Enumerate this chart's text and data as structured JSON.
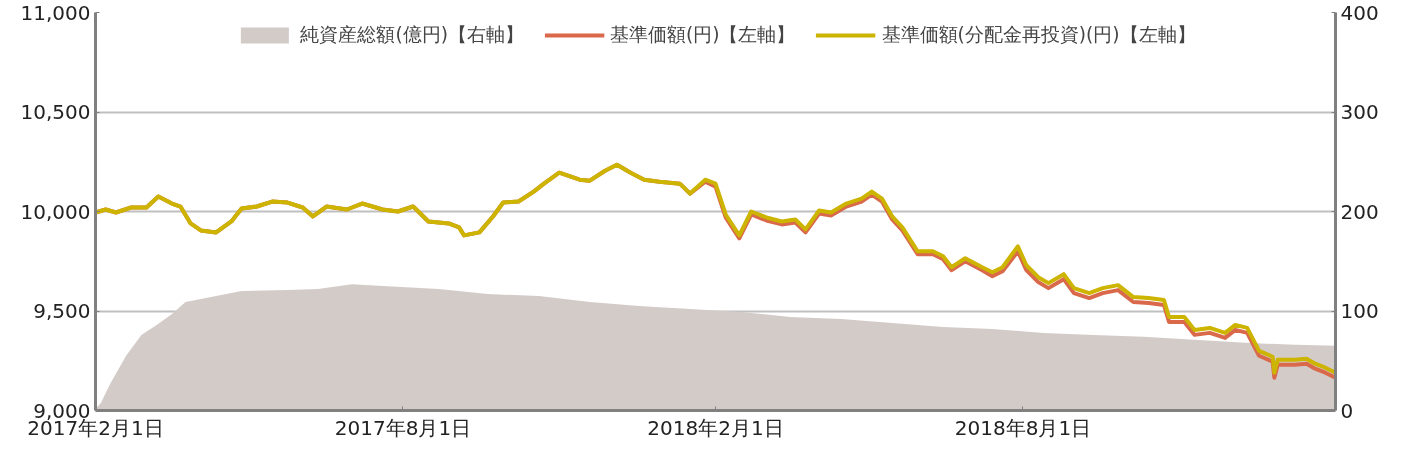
{
  "chart_data": {
    "type": "line",
    "xlim": [
      "2017-02-01",
      "2019-02-01"
    ],
    "xticks": [
      {
        "value": "2017-02-01",
        "label": "2017年2月1日"
      },
      {
        "value": "2017-08-01",
        "label": "2017年8月1日"
      },
      {
        "value": "2018-02-01",
        "label": "2018年2月1日"
      },
      {
        "value": "2018-08-01",
        "label": "2018年8月1日"
      }
    ],
    "ylim": [
      9000,
      11000
    ],
    "yticks": [
      {
        "value": 9000,
        "label": "9,000"
      },
      {
        "value": 9500,
        "label": "9,500"
      },
      {
        "value": 10000,
        "label": "10,000"
      },
      {
        "value": 10500,
        "label": "10,500"
      },
      {
        "value": 11000,
        "label": "11,000"
      }
    ],
    "y2lim": [
      0,
      400
    ],
    "y2ticks": [
      0,
      100,
      200,
      300,
      400
    ],
    "grid": "y",
    "legend": "top",
    "series": [
      {
        "name": "純資産総額(億円)【右軸】",
        "type": "area",
        "axis": "y2",
        "color": "#d3cbc8",
        "x": [
          "2017-02-01",
          "2017-02-04",
          "2017-02-10",
          "2017-02-19",
          "2017-02-28",
          "2017-03-09",
          "2017-03-18",
          "2017-03-26",
          "2017-04-07",
          "2017-04-28",
          "2017-05-25",
          "2017-06-12",
          "2017-07-02",
          "2017-07-23",
          "2017-08-22",
          "2017-09-20",
          "2017-10-20",
          "2017-11-19",
          "2017-12-18",
          "2018-01-17",
          "2018-02-16",
          "2018-03-17",
          "2018-04-16",
          "2018-05-16",
          "2018-06-15",
          "2018-07-14",
          "2018-08-13",
          "2018-09-12",
          "2018-10-11",
          "2018-11-10",
          "2018-12-10",
          "2019-01-08",
          "2019-02-01"
        ],
        "values": [
          2,
          7,
          28,
          55,
          76,
          86,
          97,
          109,
          113,
          120,
          121,
          122,
          127,
          125,
          122,
          117,
          115,
          109,
          105,
          102,
          99,
          94,
          92,
          88,
          84,
          82,
          78,
          76,
          74,
          71,
          68,
          66,
          65
        ]
      },
      {
        "name": "基準価額(円)【左軸】",
        "color": "#d9694a",
        "x": [
          "2017-02-01",
          "2017-02-07",
          "2017-02-13",
          "2017-02-22",
          "2017-03-03",
          "2017-03-10",
          "2017-03-18",
          "2017-03-23",
          "2017-03-29",
          "2017-04-04",
          "2017-04-13",
          "2017-04-22",
          "2017-04-28",
          "2017-05-07",
          "2017-05-16",
          "2017-05-25",
          "2017-06-03",
          "2017-06-09",
          "2017-06-17",
          "2017-06-29",
          "2017-07-08",
          "2017-07-20",
          "2017-07-29",
          "2017-08-07",
          "2017-08-16",
          "2017-08-28",
          "2017-09-03",
          "2017-09-06",
          "2017-09-15",
          "2017-09-23",
          "2017-09-29",
          "2017-10-08",
          "2017-10-17",
          "2017-10-23",
          "2017-11-01",
          "2017-11-13",
          "2017-11-19",
          "2017-11-28",
          "2017-12-05",
          "2017-12-13",
          "2017-12-21",
          "2017-12-30",
          "2018-01-11",
          "2018-01-17",
          "2018-01-26",
          "2018-02-01",
          "2018-02-07",
          "2018-02-15",
          "2018-02-22",
          "2018-03-03",
          "2018-03-12",
          "2018-03-20",
          "2018-03-26",
          "2018-04-03",
          "2018-04-10",
          "2018-04-19",
          "2018-04-28",
          "2018-05-04",
          "2018-05-10",
          "2018-05-16",
          "2018-05-22",
          "2018-05-31",
          "2018-06-09",
          "2018-06-15",
          "2018-06-20",
          "2018-06-28",
          "2018-07-08",
          "2018-07-14",
          "2018-07-20",
          "2018-07-29",
          "2018-08-03",
          "2018-08-10",
          "2018-08-16",
          "2018-08-25",
          "2018-08-31",
          "2018-09-09",
          "2018-09-17",
          "2018-09-26",
          "2018-10-05",
          "2018-10-14",
          "2018-10-23",
          "2018-10-26",
          "2018-11-04",
          "2018-11-10",
          "2018-11-19",
          "2018-11-28",
          "2018-12-04",
          "2018-12-11",
          "2018-12-18",
          "2018-12-26",
          "2018-12-27",
          "2018-12-29",
          "2019-01-08",
          "2019-01-15",
          "2019-01-20",
          "2019-01-26",
          "2019-02-01"
        ],
        "values": [
          9995,
          10010,
          9995,
          10020,
          10020,
          10075,
          10040,
          10025,
          9940,
          9905,
          9895,
          9950,
          10015,
          10025,
          10050,
          10045,
          10020,
          9975,
          10025,
          10010,
          10040,
          10010,
          10000,
          10025,
          9950,
          9940,
          9920,
          9880,
          9895,
          9975,
          10045,
          10050,
          10100,
          10140,
          10195,
          10160,
          10155,
          10205,
          10235,
          10195,
          10160,
          10150,
          10140,
          10090,
          10150,
          10125,
          9970,
          9865,
          9985,
          9955,
          9935,
          9945,
          9895,
          9990,
          9980,
          10025,
          10050,
          10085,
          10050,
          9960,
          9905,
          9785,
          9785,
          9760,
          9705,
          9750,
          9705,
          9675,
          9700,
          9800,
          9705,
          9645,
          9615,
          9660,
          9590,
          9565,
          9590,
          9605,
          9545,
          9540,
          9530,
          9445,
          9445,
          9380,
          9390,
          9365,
          9405,
          9390,
          9275,
          9245,
          9165,
          9230,
          9230,
          9235,
          9210,
          9190,
          9165
        ]
      },
      {
        "name": "基準価額(分配金再投資)(円)【左軸】",
        "color": "#ccb400",
        "x": [
          "2017-02-01",
          "2017-02-07",
          "2017-02-13",
          "2017-02-22",
          "2017-03-03",
          "2017-03-10",
          "2017-03-18",
          "2017-03-23",
          "2017-03-29",
          "2017-04-04",
          "2017-04-13",
          "2017-04-22",
          "2017-04-28",
          "2017-05-07",
          "2017-05-16",
          "2017-05-25",
          "2017-06-03",
          "2017-06-09",
          "2017-06-17",
          "2017-06-29",
          "2017-07-08",
          "2017-07-20",
          "2017-07-29",
          "2017-08-07",
          "2017-08-16",
          "2017-08-28",
          "2017-09-03",
          "2017-09-06",
          "2017-09-15",
          "2017-09-23",
          "2017-09-29",
          "2017-10-08",
          "2017-10-17",
          "2017-10-23",
          "2017-11-01",
          "2017-11-13",
          "2017-11-19",
          "2017-11-28",
          "2017-12-05",
          "2017-12-13",
          "2017-12-21",
          "2017-12-30",
          "2018-01-11",
          "2018-01-17",
          "2018-01-26",
          "2018-02-01",
          "2018-02-07",
          "2018-02-15",
          "2018-02-22",
          "2018-03-03",
          "2018-03-12",
          "2018-03-20",
          "2018-03-26",
          "2018-04-03",
          "2018-04-10",
          "2018-04-19",
          "2018-04-28",
          "2018-05-04",
          "2018-05-10",
          "2018-05-16",
          "2018-05-22",
          "2018-05-31",
          "2018-06-09",
          "2018-06-15",
          "2018-06-20",
          "2018-06-28",
          "2018-07-08",
          "2018-07-14",
          "2018-07-20",
          "2018-07-29",
          "2018-08-03",
          "2018-08-10",
          "2018-08-16",
          "2018-08-25",
          "2018-08-31",
          "2018-09-09",
          "2018-09-17",
          "2018-09-26",
          "2018-10-05",
          "2018-10-14",
          "2018-10-23",
          "2018-10-26",
          "2018-11-04",
          "2018-11-10",
          "2018-11-19",
          "2018-11-28",
          "2018-12-04",
          "2018-12-11",
          "2018-12-18",
          "2018-12-26",
          "2018-12-27",
          "2018-12-29",
          "2019-01-08",
          "2019-01-15",
          "2019-01-20",
          "2019-01-26",
          "2019-02-01"
        ],
        "values": [
          9995,
          10010,
          9995,
          10020,
          10020,
          10075,
          10040,
          10025,
          9940,
          9905,
          9895,
          9950,
          10015,
          10025,
          10050,
          10045,
          10020,
          9975,
          10025,
          10010,
          10040,
          10010,
          10000,
          10025,
          9950,
          9940,
          9920,
          9880,
          9895,
          9975,
          10045,
          10050,
          10100,
          10140,
          10195,
          10160,
          10155,
          10205,
          10235,
          10195,
          10160,
          10150,
          10140,
          10090,
          10160,
          10140,
          9985,
          9880,
          10000,
          9970,
          9950,
          9960,
          9910,
          10005,
          9995,
          10040,
          10065,
          10100,
          10065,
          9975,
          9920,
          9800,
          9800,
          9775,
          9720,
          9765,
          9720,
          9695,
          9720,
          9825,
          9730,
          9670,
          9640,
          9685,
          9615,
          9590,
          9615,
          9630,
          9570,
          9565,
          9555,
          9470,
          9470,
          9405,
          9415,
          9390,
          9430,
          9415,
          9300,
          9270,
          9190,
          9255,
          9255,
          9260,
          9235,
          9215,
          9190
        ]
      }
    ]
  }
}
